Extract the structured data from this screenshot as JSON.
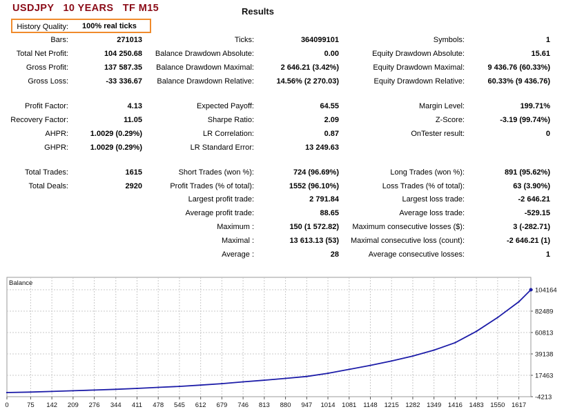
{
  "header": {
    "title": "USDJPY   10 YEARS   TF M15",
    "results": "Results"
  },
  "history_quality": {
    "label": "History Quality:",
    "value": "100% real ticks"
  },
  "stats": {
    "col1": [
      {
        "label": "Bars:",
        "value": "271013"
      },
      {
        "label": "Total Net Profit:",
        "value": "104 250.68"
      },
      {
        "label": "Gross Profit:",
        "value": "137 587.35"
      },
      {
        "label": "Gross Loss:",
        "value": "-33 336.67"
      },
      {
        "label": "Profit Factor:",
        "value": "4.13"
      },
      {
        "label": "Recovery Factor:",
        "value": "11.05"
      },
      {
        "label": "AHPR:",
        "value": "1.0029 (0.29%)"
      },
      {
        "label": "GHPR:",
        "value": "1.0029 (0.29%)"
      },
      {
        "label": "Total Trades:",
        "value": "1615"
      },
      {
        "label": "Total Deals:",
        "value": "2920"
      }
    ],
    "col2": [
      {
        "label": "Ticks:",
        "value": "364099101"
      },
      {
        "label": "Balance Drawdown Absolute:",
        "value": "0.00"
      },
      {
        "label": "Balance Drawdown Maximal:",
        "value": "2 646.21 (3.42%)"
      },
      {
        "label": "Balance Drawdown Relative:",
        "value": "14.56% (2 270.03)"
      },
      {
        "label": "Expected Payoff:",
        "value": "64.55"
      },
      {
        "label": "Sharpe Ratio:",
        "value": "2.09"
      },
      {
        "label": "LR Correlation:",
        "value": "0.87"
      },
      {
        "label": "LR Standard Error:",
        "value": "13 249.63"
      },
      {
        "label": "Short Trades (won %):",
        "value": "724 (96.69%)"
      },
      {
        "label": "Profit Trades (% of total):",
        "value": "1552 (96.10%)"
      },
      {
        "label": "Largest profit trade:",
        "value": "2 791.84"
      },
      {
        "label": "Average profit trade:",
        "value": "88.65"
      },
      {
        "label": "Maximum :",
        "value": "150 (1 572.82)"
      },
      {
        "label": "Maximal :",
        "value": "13 613.13 (53)"
      },
      {
        "label": "Average :",
        "value": "28"
      }
    ],
    "col3": [
      {
        "label": "Symbols:",
        "value": "1"
      },
      {
        "label": "Equity Drawdown Absolute:",
        "value": "15.61"
      },
      {
        "label": "Equity Drawdown Maximal:",
        "value": "9 436.76 (60.33%)"
      },
      {
        "label": "Equity Drawdown Relative:",
        "value": "60.33% (9 436.76)"
      },
      {
        "label": "Margin Level:",
        "value": "199.71%"
      },
      {
        "label": "Z-Score:",
        "value": "-3.19 (99.74%)"
      },
      {
        "label": "OnTester result:",
        "value": "0"
      },
      {
        "label": "Long Trades (won %):",
        "value": "891 (95.62%)"
      },
      {
        "label": "Loss Trades (% of total):",
        "value": "63 (3.90%)"
      },
      {
        "label": "Largest loss trade:",
        "value": "-2 646.21"
      },
      {
        "label": "Average loss trade:",
        "value": "-529.15"
      },
      {
        "label": "Maximum consecutive losses ($):",
        "value": "3 (-282.71)"
      },
      {
        "label": "Maximal consecutive loss (count):",
        "value": "-2 646.21 (1)"
      },
      {
        "label": "Average consecutive losses:",
        "value": "1"
      }
    ]
  },
  "chart_data": {
    "type": "line",
    "title": "Balance",
    "line_color": "#1c1ca8",
    "grid": true,
    "x_ticks": [
      "0",
      "75",
      "142",
      "209",
      "276",
      "344",
      "411",
      "478",
      "545",
      "612",
      "679",
      "746",
      "813",
      "880",
      "947",
      "1014",
      "1081",
      "1148",
      "1215",
      "1282",
      "1349",
      "1416",
      "1483",
      "1550",
      "1617"
    ],
    "y_ticks": [
      "104164",
      "82489",
      "60813",
      "39138",
      "17463",
      "-4213"
    ],
    "xlim": [
      0,
      1655
    ],
    "ylim": [
      -4213,
      104164
    ],
    "series": [
      {
        "x": [
          0,
          75,
          142,
          209,
          276,
          344,
          411,
          478,
          545,
          612,
          679,
          746,
          813,
          880,
          947,
          1014,
          1081,
          1148,
          1215,
          1282,
          1349,
          1416,
          1483,
          1550,
          1617,
          1655
        ],
        "y": [
          0,
          500,
          1100,
          1800,
          2500,
          3300,
          4200,
          5200,
          6200,
          7500,
          9000,
          10800,
          12500,
          14300,
          16300,
          19500,
          23500,
          27500,
          32000,
          37000,
          43000,
          50500,
          62000,
          76000,
          92000,
          104164
        ]
      }
    ]
  }
}
